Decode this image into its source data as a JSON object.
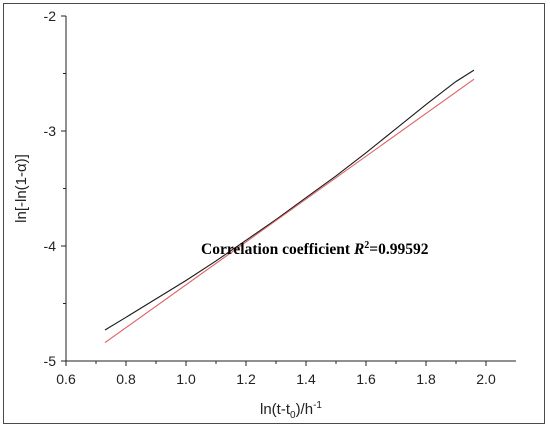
{
  "chart_data": {
    "type": "line",
    "title": "",
    "xlabel": "ln(t-t",
    "xlabel_sub": "0",
    "xlabel_tail": ")/h",
    "xlabel_sup": "-1",
    "ylabel": "ln[-ln(1-α)]",
    "xlim": [
      0.6,
      2.1
    ],
    "ylim": [
      -5,
      -2
    ],
    "x_ticks": [
      0.6,
      0.8,
      1.0,
      1.2,
      1.4,
      1.6,
      1.8,
      2.0
    ],
    "x_tick_labels": [
      "0.6",
      "0.8",
      "1.0",
      "1.2",
      "1.4",
      "1.6",
      "1.8",
      "2.0"
    ],
    "y_ticks": [
      -5,
      -4,
      -3,
      -2
    ],
    "y_tick_labels": [
      "-5",
      "-4",
      "-3",
      "-2"
    ],
    "grid": false,
    "series": [
      {
        "color": "#1a1a1a",
        "x": [
          0.73,
          0.8,
          0.9,
          1.0,
          1.1,
          1.2,
          1.3,
          1.4,
          1.5,
          1.6,
          1.7,
          1.8,
          1.9,
          1.96
        ],
        "y": [
          -4.73,
          -4.62,
          -4.46,
          -4.3,
          -4.13,
          -3.95,
          -3.77,
          -3.58,
          -3.39,
          -3.19,
          -2.98,
          -2.77,
          -2.57,
          -2.47
        ]
      },
      {
        "color": "#e06060",
        "x": [
          0.73,
          1.96
        ],
        "y": [
          -4.84,
          -2.55
        ]
      }
    ],
    "annotation": {
      "text": "Correlation coefficient ",
      "symbol": "R",
      "sup": "2",
      "value": "=0.99592",
      "x": 1.05,
      "y": -4.07
    }
  }
}
